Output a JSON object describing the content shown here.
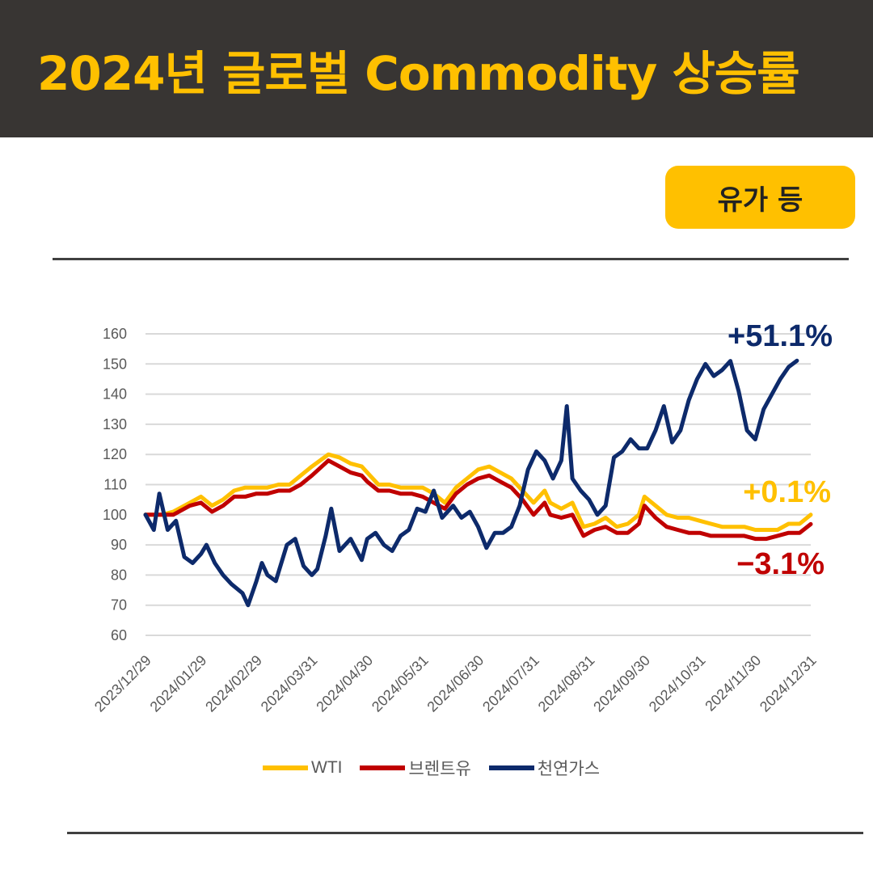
{
  "header": {
    "title": "2024년 글로벌 Commodity 상승률"
  },
  "badge": {
    "label": "유가 등"
  },
  "annotations": {
    "gas": "+51.1%",
    "wti": "+0.1%",
    "brent": "−3.1%"
  },
  "chart_data": {
    "type": "line",
    "title": "",
    "xlabel": "",
    "ylabel": "",
    "ylim": [
      60,
      160
    ],
    "yticks": [
      60,
      70,
      80,
      90,
      100,
      110,
      120,
      130,
      140,
      150,
      160
    ],
    "xticks": [
      "2023/12/29",
      "2024/01/29",
      "2024/02/29",
      "2024/03/31",
      "2024/04/30",
      "2024/05/31",
      "2024/06/30",
      "2024/07/31",
      "2024/08/31",
      "2024/09/30",
      "2024/10/31",
      "2024/11/30",
      "2024/12/31"
    ],
    "grid": true,
    "legend_position": "bottom",
    "series": [
      {
        "name": "WTI",
        "color": "#FFC000",
        "values": [
          [
            0,
            100
          ],
          [
            0.3,
            100
          ],
          [
            0.5,
            101
          ],
          [
            0.8,
            104
          ],
          [
            1,
            106
          ],
          [
            1.2,
            103
          ],
          [
            1.4,
            105
          ],
          [
            1.6,
            108
          ],
          [
            1.8,
            109
          ],
          [
            2,
            109
          ],
          [
            2.2,
            109
          ],
          [
            2.4,
            110
          ],
          [
            2.6,
            110
          ],
          [
            2.8,
            113
          ],
          [
            3,
            116
          ],
          [
            3.3,
            120
          ],
          [
            3.5,
            119
          ],
          [
            3.7,
            117
          ],
          [
            3.9,
            116
          ],
          [
            4,
            114
          ],
          [
            4.2,
            110
          ],
          [
            4.4,
            110
          ],
          [
            4.6,
            109
          ],
          [
            4.8,
            109
          ],
          [
            5,
            109
          ],
          [
            5.2,
            107
          ],
          [
            5.4,
            104
          ],
          [
            5.6,
            109
          ],
          [
            5.8,
            112
          ],
          [
            6,
            115
          ],
          [
            6.2,
            116
          ],
          [
            6.4,
            114
          ],
          [
            6.6,
            112
          ],
          [
            6.8,
            108
          ],
          [
            7,
            104
          ],
          [
            7.2,
            108
          ],
          [
            7.3,
            104
          ],
          [
            7.5,
            102
          ],
          [
            7.7,
            104
          ],
          [
            7.9,
            96
          ],
          [
            8.1,
            97
          ],
          [
            8.3,
            99
          ],
          [
            8.5,
            96
          ],
          [
            8.7,
            97
          ],
          [
            8.9,
            100
          ],
          [
            9,
            106
          ],
          [
            9.2,
            103
          ],
          [
            9.4,
            100
          ],
          [
            9.6,
            99
          ],
          [
            9.8,
            99
          ],
          [
            10,
            98
          ],
          [
            10.2,
            97
          ],
          [
            10.4,
            96
          ],
          [
            10.6,
            96
          ],
          [
            10.8,
            96
          ],
          [
            11,
            95
          ],
          [
            11.2,
            95
          ],
          [
            11.4,
            95
          ],
          [
            11.6,
            97
          ],
          [
            11.8,
            97
          ],
          [
            12,
            100
          ]
        ]
      },
      {
        "name": "브렌트유",
        "color": "#C00000",
        "values": [
          [
            0,
            100
          ],
          [
            0.3,
            100
          ],
          [
            0.5,
            100
          ],
          [
            0.8,
            103
          ],
          [
            1,
            104
          ],
          [
            1.2,
            101
          ],
          [
            1.4,
            103
          ],
          [
            1.6,
            106
          ],
          [
            1.8,
            106
          ],
          [
            2,
            107
          ],
          [
            2.2,
            107
          ],
          [
            2.4,
            108
          ],
          [
            2.6,
            108
          ],
          [
            2.8,
            110
          ],
          [
            3,
            113
          ],
          [
            3.3,
            118
          ],
          [
            3.5,
            116
          ],
          [
            3.7,
            114
          ],
          [
            3.9,
            113
          ],
          [
            4,
            111
          ],
          [
            4.2,
            108
          ],
          [
            4.4,
            108
          ],
          [
            4.6,
            107
          ],
          [
            4.8,
            107
          ],
          [
            5,
            106
          ],
          [
            5.2,
            104
          ],
          [
            5.4,
            102
          ],
          [
            5.6,
            107
          ],
          [
            5.8,
            110
          ],
          [
            6,
            112
          ],
          [
            6.2,
            113
          ],
          [
            6.4,
            111
          ],
          [
            6.6,
            109
          ],
          [
            6.8,
            105
          ],
          [
            7,
            100
          ],
          [
            7.2,
            104
          ],
          [
            7.3,
            100
          ],
          [
            7.5,
            99
          ],
          [
            7.7,
            100
          ],
          [
            7.9,
            93
          ],
          [
            8.1,
            95
          ],
          [
            8.3,
            96
          ],
          [
            8.5,
            94
          ],
          [
            8.7,
            94
          ],
          [
            8.9,
            97
          ],
          [
            9,
            103
          ],
          [
            9.2,
            99
          ],
          [
            9.4,
            96
          ],
          [
            9.6,
            95
          ],
          [
            9.8,
            94
          ],
          [
            10,
            94
          ],
          [
            10.2,
            93
          ],
          [
            10.4,
            93
          ],
          [
            10.6,
            93
          ],
          [
            10.8,
            93
          ],
          [
            11,
            92
          ],
          [
            11.2,
            92
          ],
          [
            11.4,
            93
          ],
          [
            11.6,
            94
          ],
          [
            11.8,
            94
          ],
          [
            12,
            96.9
          ]
        ]
      },
      {
        "name": "천연가스",
        "color": "#0D2A6B",
        "values": [
          [
            0,
            100
          ],
          [
            0.15,
            95
          ],
          [
            0.25,
            107
          ],
          [
            0.4,
            95
          ],
          [
            0.55,
            98
          ],
          [
            0.7,
            86
          ],
          [
            0.85,
            84
          ],
          [
            1,
            87
          ],
          [
            1.1,
            90
          ],
          [
            1.25,
            84
          ],
          [
            1.4,
            80
          ],
          [
            1.55,
            77
          ],
          [
            1.75,
            74
          ],
          [
            1.85,
            70
          ],
          [
            2,
            78
          ],
          [
            2.1,
            84
          ],
          [
            2.2,
            80
          ],
          [
            2.35,
            78
          ],
          [
            2.55,
            90
          ],
          [
            2.7,
            92
          ],
          [
            2.85,
            83
          ],
          [
            3,
            80
          ],
          [
            3.1,
            82
          ],
          [
            3.25,
            93
          ],
          [
            3.35,
            102
          ],
          [
            3.5,
            88
          ],
          [
            3.7,
            92
          ],
          [
            3.9,
            85
          ],
          [
            4,
            92
          ],
          [
            4.15,
            94
          ],
          [
            4.3,
            90
          ],
          [
            4.45,
            88
          ],
          [
            4.6,
            93
          ],
          [
            4.75,
            95
          ],
          [
            4.9,
            102
          ],
          [
            5.05,
            101
          ],
          [
            5.2,
            108
          ],
          [
            5.35,
            99
          ],
          [
            5.55,
            103
          ],
          [
            5.7,
            99
          ],
          [
            5.85,
            101
          ],
          [
            6,
            96
          ],
          [
            6.15,
            89
          ],
          [
            6.3,
            94
          ],
          [
            6.45,
            94
          ],
          [
            6.6,
            96
          ],
          [
            6.75,
            103
          ],
          [
            6.9,
            115
          ],
          [
            7.05,
            121
          ],
          [
            7.2,
            118
          ],
          [
            7.35,
            112
          ],
          [
            7.5,
            118
          ],
          [
            7.6,
            136
          ],
          [
            7.7,
            112
          ],
          [
            7.85,
            108
          ],
          [
            8,
            105
          ],
          [
            8.15,
            100
          ],
          [
            8.3,
            103
          ],
          [
            8.45,
            119
          ],
          [
            8.6,
            121
          ],
          [
            8.75,
            125
          ],
          [
            8.9,
            122
          ],
          [
            9.05,
            122
          ],
          [
            9.2,
            128
          ],
          [
            9.35,
            136
          ],
          [
            9.5,
            124
          ],
          [
            9.65,
            128
          ],
          [
            9.8,
            138
          ],
          [
            9.95,
            145
          ],
          [
            10.1,
            150
          ],
          [
            10.25,
            146
          ],
          [
            10.4,
            148
          ],
          [
            10.55,
            151
          ],
          [
            10.7,
            141
          ],
          [
            10.85,
            128
          ],
          [
            11,
            125
          ],
          [
            11.15,
            135
          ],
          [
            11.3,
            140
          ],
          [
            11.45,
            145
          ],
          [
            11.6,
            149
          ],
          [
            11.75,
            151.1
          ]
        ]
      }
    ]
  },
  "legend": {
    "items": [
      {
        "label": "WTI",
        "color": "#FFC000"
      },
      {
        "label": "브렌트유",
        "color": "#C00000"
      },
      {
        "label": "천연가스",
        "color": "#0D2A6B"
      }
    ]
  }
}
